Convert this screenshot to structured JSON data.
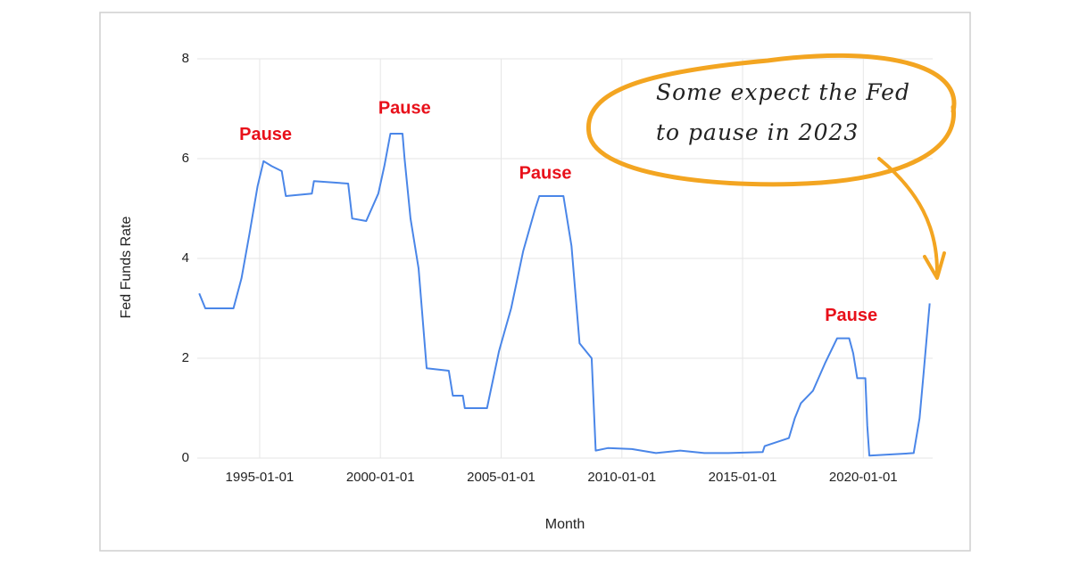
{
  "chart_data": {
    "type": "line",
    "x_label": "Month",
    "y_label": "Fed Funds Rate",
    "color": "#4a86e8",
    "grid": true,
    "xlim": [
      "1992-06-01",
      "2022-11-15"
    ],
    "xticks": [
      "1995-01-01",
      "2000-01-01",
      "2005-01-01",
      "2010-01-01",
      "2015-01-01",
      "2020-01-01"
    ],
    "ylim": [
      0,
      8
    ],
    "yticks": [
      0,
      2,
      4,
      6,
      8
    ],
    "x": [
      "1992-07-01",
      "1992-10-01",
      "1993-01-01",
      "1993-12-01",
      "1994-04-01",
      "1994-08-01",
      "1994-12-01",
      "1995-03-01",
      "1995-07-01",
      "1995-12-01",
      "1996-02-01",
      "1997-03-01",
      "1997-04-01",
      "1998-09-01",
      "1998-11-01",
      "1999-06-01",
      "1999-12-01",
      "2000-03-01",
      "2000-06-01",
      "2000-12-01",
      "2001-01-01",
      "2001-04-01",
      "2001-08-01",
      "2001-12-01",
      "2002-11-01",
      "2003-01-01",
      "2003-06-01",
      "2003-07-01",
      "2004-06-01",
      "2004-12-01",
      "2005-06-01",
      "2005-12-01",
      "2006-06-01",
      "2006-08-01",
      "2007-08-01",
      "2007-12-01",
      "2008-04-01",
      "2008-10-01",
      "2008-12-01",
      "2009-06-01",
      "2010-06-01",
      "2011-06-01",
      "2012-06-01",
      "2013-06-01",
      "2014-06-01",
      "2015-11-01",
      "2015-12-01",
      "2016-12-01",
      "2017-03-01",
      "2017-06-01",
      "2017-12-01",
      "2018-06-01",
      "2018-12-01",
      "2019-06-01",
      "2019-08-01",
      "2019-10-01",
      "2020-02-01",
      "2020-03-01",
      "2020-04-01",
      "2021-06-01",
      "2022-02-01",
      "2022-05-01",
      "2022-07-01",
      "2022-10-01"
    ],
    "values": [
      3.3,
      3.0,
      3.0,
      3.0,
      3.6,
      4.5,
      5.45,
      5.95,
      5.85,
      5.75,
      5.25,
      5.3,
      5.55,
      5.5,
      4.8,
      4.75,
      5.3,
      5.85,
      6.5,
      6.5,
      6.0,
      4.8,
      3.8,
      1.8,
      1.75,
      1.25,
      1.25,
      1.0,
      1.0,
      2.15,
      3.0,
      4.15,
      5.0,
      5.25,
      5.25,
      4.25,
      2.3,
      2.0,
      0.15,
      0.2,
      0.18,
      0.1,
      0.15,
      0.1,
      0.1,
      0.12,
      0.24,
      0.4,
      0.8,
      1.1,
      1.35,
      1.9,
      2.4,
      2.4,
      2.1,
      1.6,
      1.6,
      0.65,
      0.05,
      0.08,
      0.1,
      0.8,
      1.7,
      3.1
    ],
    "annotations": [
      {
        "text": "Pause",
        "x": "1995-04-01",
        "y": 6.375
      },
      {
        "text": "Pause",
        "x": "2001-01-01",
        "y": 6.9
      },
      {
        "text": "Pause",
        "x": "2006-11-01",
        "y": 5.6
      },
      {
        "text": "Pause",
        "x": "2019-07-01",
        "y": 2.75
      }
    ],
    "callout": [
      "Some expect the Fed",
      "to pause in 2023"
    ]
  }
}
